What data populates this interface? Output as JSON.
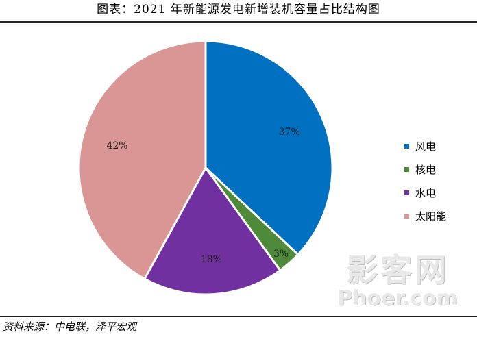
{
  "title": "图表：2021 年新能源发电新增装机容量占比结构图",
  "source": "资料来源：中电联，泽平宏观",
  "watermark": {
    "main": "影客网",
    "sub": "Phoer.com"
  },
  "chart_data": {
    "type": "pie",
    "title": "图表：2021 年新能源发电新增装机容量占比结构图",
    "start_angle_deg": 90,
    "direction": "clockwise",
    "legend_position": "right",
    "categories": [
      "风电",
      "核电",
      "水电",
      "太阳能"
    ],
    "values": [
      37,
      3,
      18,
      42
    ],
    "labels": [
      "37%",
      "3%",
      "18%",
      "42%"
    ],
    "colors": [
      "#0070C0",
      "#4E8A3A",
      "#7030A0",
      "#D99694"
    ]
  }
}
